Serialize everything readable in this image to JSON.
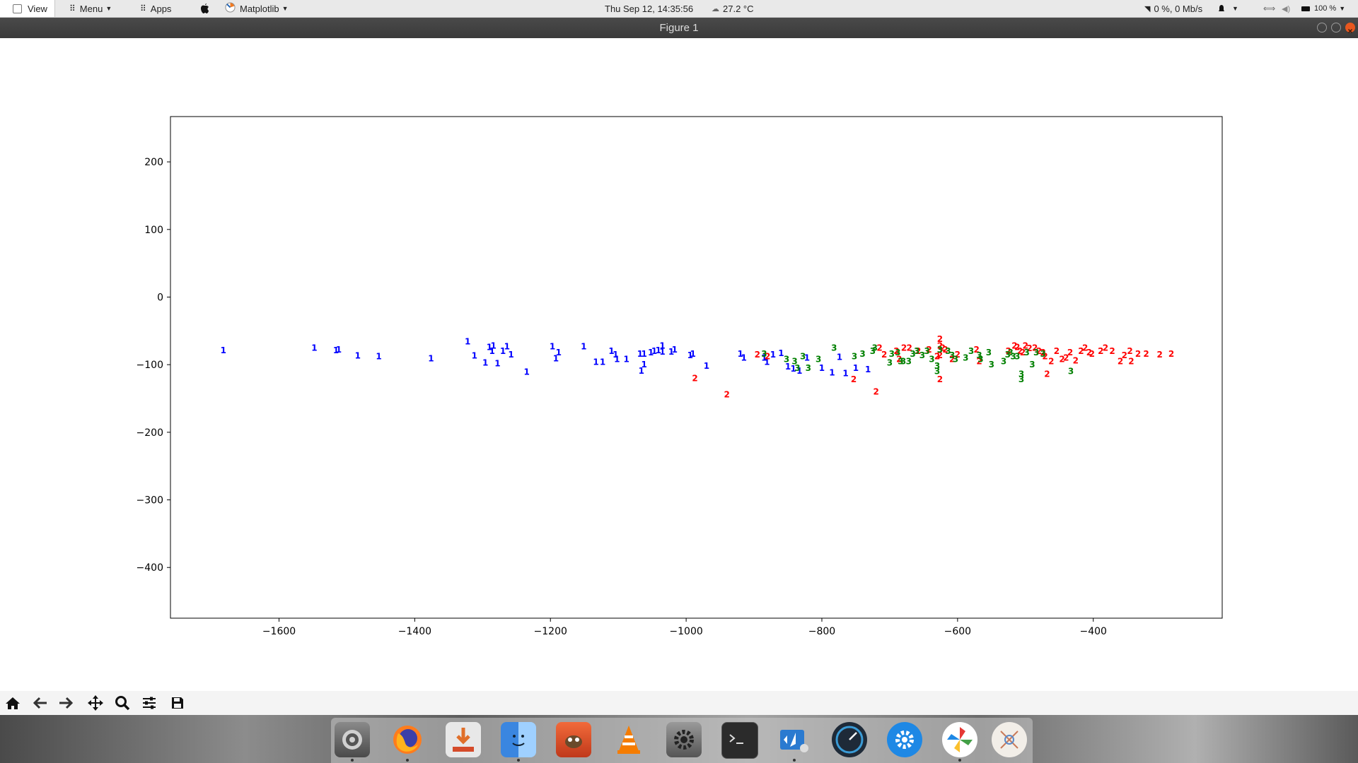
{
  "topbar": {
    "view_label": "View",
    "menu_label": "Menu",
    "apps_label": "Apps",
    "app_name": "Matplotlib",
    "datetime": "Thu Sep 12, 14:35:56",
    "temperature": "27.2 °C",
    "network": "0 %, 0 Mb/s",
    "battery": "100 %"
  },
  "window": {
    "title": "Figure 1"
  },
  "toolbar": {
    "tools": [
      "home-icon",
      "back-arrow-icon",
      "forward-arrow-icon",
      "pan-icon",
      "zoom-icon",
      "configure-subplots-icon",
      "save-icon"
    ]
  },
  "dock": {
    "apps": [
      "system-settings-icon",
      "firefox-icon",
      "installer-icon",
      "finder-icon",
      "gimp-icon",
      "vlc-icon",
      "preferences-icon",
      "terminal-icon",
      "vscode-icon",
      "stacer-icon",
      "settings-gear-icon",
      "pinwheel-app-icon",
      "compass-app-icon"
    ],
    "running": [
      0,
      1,
      3,
      8,
      11
    ]
  },
  "chart_data": {
    "type": "scatter",
    "title": "",
    "xlabel": "",
    "ylabel": "",
    "xlim": [
      -1760,
      -210
    ],
    "ylim": [
      -475,
      267
    ],
    "xticks": [
      -1600,
      -1400,
      -1200,
      -1000,
      -800,
      -600,
      -400
    ],
    "yticks": [
      200,
      100,
      0,
      -100,
      -200,
      -300,
      -400
    ],
    "xtick_labels": [
      "−1600",
      "−1400",
      "−1200",
      "−1000",
      "−800",
      "−600",
      "−400"
    ],
    "ytick_labels": [
      "200",
      "100",
      "0",
      "−100",
      "−200",
      "−300",
      "−400"
    ],
    "grid": false,
    "series": [
      {
        "label": "1",
        "color": "#0000ff",
        "points": [
          [
            -1682,
            -79
          ],
          [
            -1548,
            -75
          ],
          [
            -1516,
            -79
          ],
          [
            -1512,
            -78
          ],
          [
            -1484,
            -87
          ],
          [
            -1453,
            -88
          ],
          [
            -1376,
            -91
          ],
          [
            -1322,
            -66
          ],
          [
            -1312,
            -87
          ],
          [
            -1296,
            -97
          ],
          [
            -1290,
            -74
          ],
          [
            -1286,
            -80
          ],
          [
            -1284,
            -72
          ],
          [
            -1278,
            -98
          ],
          [
            -1270,
            -80
          ],
          [
            -1264,
            -73
          ],
          [
            -1258,
            -85
          ],
          [
            -1235,
            -111
          ],
          [
            -1197,
            -73
          ],
          [
            -1192,
            -91
          ],
          [
            -1188,
            -82
          ],
          [
            -1151,
            -73
          ],
          [
            -1133,
            -96
          ],
          [
            -1123,
            -96
          ],
          [
            -1110,
            -80
          ],
          [
            -1104,
            -85
          ],
          [
            -1102,
            -92
          ],
          [
            -1088,
            -92
          ],
          [
            -1068,
            -84
          ],
          [
            -1066,
            -109
          ],
          [
            -1062,
            -84
          ],
          [
            -1062,
            -100
          ],
          [
            -1052,
            -82
          ],
          [
            -1047,
            -80
          ],
          [
            -1041,
            -79
          ],
          [
            -1035,
            -72
          ],
          [
            -1035,
            -81
          ],
          [
            -1022,
            -81
          ],
          [
            -1017,
            -78
          ],
          [
            -994,
            -86
          ],
          [
            -990,
            -84
          ],
          [
            -970,
            -102
          ],
          [
            -920,
            -84
          ],
          [
            -915,
            -90
          ],
          [
            -885,
            -90
          ],
          [
            -881,
            -96
          ],
          [
            -872,
            -85
          ],
          [
            -860,
            -83
          ],
          [
            -850,
            -103
          ],
          [
            -842,
            -106
          ],
          [
            -833,
            -109
          ],
          [
            -822,
            -90
          ],
          [
            -800,
            -105
          ],
          [
            -785,
            -112
          ],
          [
            -774,
            -89
          ],
          [
            -765,
            -113
          ],
          [
            -750,
            -105
          ],
          [
            -732,
            -107
          ]
        ]
      },
      {
        "label": "2",
        "color": "#ff0000",
        "points": [
          [
            -987,
            -120
          ],
          [
            -940,
            -144
          ],
          [
            -895,
            -85
          ],
          [
            -880,
            -88
          ],
          [
            -753,
            -122
          ],
          [
            -720,
            -140
          ],
          [
            -715,
            -75
          ],
          [
            -708,
            -85
          ],
          [
            -690,
            -80
          ],
          [
            -686,
            -92
          ],
          [
            -679,
            -75
          ],
          [
            -671,
            -75
          ],
          [
            -658,
            -80
          ],
          [
            -642,
            -78
          ],
          [
            -630,
            -88
          ],
          [
            -626,
            -62
          ],
          [
            -626,
            -72
          ],
          [
            -626,
            -86
          ],
          [
            -626,
            -122
          ],
          [
            -622,
            -75
          ],
          [
            -618,
            -78
          ],
          [
            -608,
            -92
          ],
          [
            -600,
            -85
          ],
          [
            -572,
            -78
          ],
          [
            -568,
            -95
          ],
          [
            -525,
            -80
          ],
          [
            -516,
            -72
          ],
          [
            -512,
            -74
          ],
          [
            -508,
            -80
          ],
          [
            -504,
            -82
          ],
          [
            -500,
            -72
          ],
          [
            -494,
            -76
          ],
          [
            -486,
            -75
          ],
          [
            -480,
            -80
          ],
          [
            -474,
            -82
          ],
          [
            -471,
            -88
          ],
          [
            -468,
            -114
          ],
          [
            -462,
            -95
          ],
          [
            -454,
            -80
          ],
          [
            -446,
            -92
          ],
          [
            -440,
            -90
          ],
          [
            -434,
            -82
          ],
          [
            -426,
            -94
          ],
          [
            -418,
            -80
          ],
          [
            -412,
            -75
          ],
          [
            -406,
            -82
          ],
          [
            -402,
            -84
          ],
          [
            -389,
            -80
          ],
          [
            -382,
            -75
          ],
          [
            -372,
            -80
          ],
          [
            -360,
            -95
          ],
          [
            -354,
            -86
          ],
          [
            -346,
            -80
          ],
          [
            -344,
            -95
          ],
          [
            -334,
            -84
          ],
          [
            -322,
            -84
          ],
          [
            -302,
            -85
          ],
          [
            -285,
            -84
          ]
        ]
      },
      {
        "label": "3",
        "color": "#008000",
        "points": [
          [
            -885,
            -84
          ],
          [
            -852,
            -92
          ],
          [
            -840,
            -95
          ],
          [
            -836,
            -105
          ],
          [
            -828,
            -88
          ],
          [
            -820,
            -105
          ],
          [
            -805,
            -92
          ],
          [
            -782,
            -75
          ],
          [
            -752,
            -88
          ],
          [
            -740,
            -84
          ],
          [
            -725,
            -80
          ],
          [
            -722,
            -75
          ],
          [
            -700,
            -97
          ],
          [
            -697,
            -84
          ],
          [
            -688,
            -82
          ],
          [
            -684,
            -95
          ],
          [
            -680,
            -95
          ],
          [
            -672,
            -95
          ],
          [
            -666,
            -84
          ],
          [
            -660,
            -80
          ],
          [
            -652,
            -86
          ],
          [
            -645,
            -80
          ],
          [
            -638,
            -92
          ],
          [
            -630,
            -102
          ],
          [
            -630,
            -110
          ],
          [
            -626,
            -78
          ],
          [
            -614,
            -80
          ],
          [
            -608,
            -86
          ],
          [
            -603,
            -92
          ],
          [
            -588,
            -90
          ],
          [
            -580,
            -80
          ],
          [
            -568,
            -86
          ],
          [
            -566,
            -92
          ],
          [
            -554,
            -82
          ],
          [
            -550,
            -100
          ],
          [
            -532,
            -95
          ],
          [
            -526,
            -85
          ],
          [
            -522,
            -82
          ],
          [
            -518,
            -88
          ],
          [
            -512,
            -88
          ],
          [
            -506,
            -114
          ],
          [
            -506,
            -122
          ],
          [
            -498,
            -82
          ],
          [
            -490,
            -100
          ],
          [
            -484,
            -82
          ],
          [
            -474,
            -84
          ],
          [
            -433,
            -110
          ]
        ]
      }
    ]
  }
}
